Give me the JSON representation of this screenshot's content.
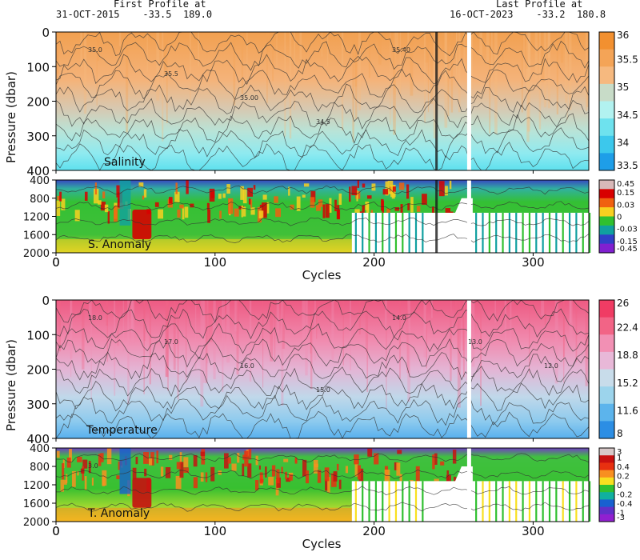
{
  "header": {
    "first_title": "First Profile at",
    "first_info": "31-OCT-2015    -33.5  189.0",
    "last_title": "Last Profile at",
    "last_info": "16-OCT-2023    -33.2  180.8"
  },
  "chart_data": [
    {
      "type": "heatmap",
      "name": "Salinity",
      "label": "Salinity",
      "ylabel": "Pressure (dbar)",
      "ylim": [
        0,
        400
      ],
      "yticks": [
        0,
        100,
        200,
        300,
        400
      ],
      "xlim": [
        0,
        335
      ],
      "xticks": [
        0,
        100,
        200,
        300
      ],
      "colorbar": {
        "ticks": [
          "36",
          "35.5",
          "35",
          "34.5",
          "34",
          "33.5"
        ],
        "colors": [
          "#f29030",
          "#f4a457",
          "#f6b97f",
          "#c8dcc8",
          "#b2f2f0",
          "#6ee2ee",
          "#3cc8ec",
          "#1e9ee8"
        ]
      },
      "contour_labels": [
        "35.0",
        "35.5",
        "35.00",
        "34.5",
        "35.40"
      ]
    },
    {
      "type": "heatmap",
      "name": "Salinity anomaly",
      "label": "S. Anomaly",
      "ylim": [
        400,
        2000
      ],
      "yticks": [
        400,
        800,
        1200,
        1600,
        2000
      ],
      "xlim": [
        0,
        335
      ],
      "xticks": [
        0,
        100,
        200,
        300
      ],
      "xlabel": "Cycles",
      "colorbar": {
        "ticks": [
          "0.45",
          "0.15",
          "0.03",
          "0",
          "-0.03",
          "-0.15",
          "-0.45"
        ],
        "colors": [
          "#d8b8b8",
          "#d80000",
          "#f06010",
          "#f8d020",
          "#30c030",
          "#10a0a0",
          "#3040c8",
          "#8020d0"
        ]
      }
    },
    {
      "type": "heatmap",
      "name": "Temperature",
      "label": "Temperature",
      "ylabel": "Pressure (dbar)",
      "ylim": [
        0,
        400
      ],
      "yticks": [
        0,
        100,
        200,
        300,
        400
      ],
      "xlim": [
        0,
        335
      ],
      "xticks": [
        0,
        100,
        200,
        300
      ],
      "colorbar": {
        "ticks": [
          "26",
          "22.4",
          "18.8",
          "15.2",
          "11.6",
          "8"
        ],
        "colors": [
          "#f03c64",
          "#f26486",
          "#f290b4",
          "#e8b8d8",
          "#c8dcea",
          "#9cd4ec",
          "#5cb4ec",
          "#2c8ee4"
        ]
      },
      "contour_labels": [
        "18.0",
        "17.0",
        "16.0",
        "15.0",
        "14.0",
        "13.0",
        "12.0"
      ]
    },
    {
      "type": "heatmap",
      "name": "Temperature anomaly",
      "label": "T. Anomaly",
      "ylim": [
        400,
        2000
      ],
      "yticks": [
        400,
        800,
        1200,
        1600,
        2000
      ],
      "xlim": [
        0,
        335
      ],
      "xticks": [
        0,
        100,
        200,
        300
      ],
      "xlabel": "Cycles",
      "colorbar": {
        "ticks": [
          "3",
          "1",
          "0.4",
          "0.2",
          "0",
          "-0.2",
          "-0.4",
          "-1",
          "-3"
        ],
        "colors": [
          "#d8c8c8",
          "#c81010",
          "#e83010",
          "#f89020",
          "#f8e020",
          "#30c030",
          "#10b0a0",
          "#1860d0",
          "#6030c8",
          "#9020d0"
        ]
      },
      "contour_labels": [
        "3.0"
      ]
    }
  ]
}
